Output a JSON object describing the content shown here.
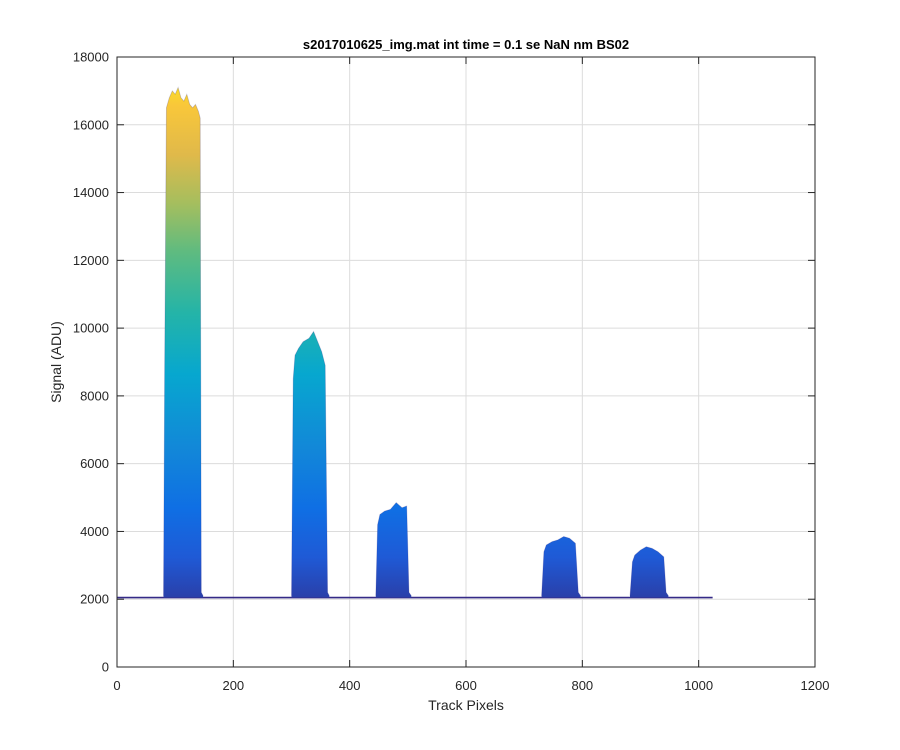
{
  "chart_data": {
    "type": "area",
    "title": "s2017010625_img.mat int time = 0.1 se  NaN nm BS02",
    "xlabel": "Track Pixels",
    "ylabel": "Signal (ADU)",
    "xlim": [
      0,
      1200
    ],
    "ylim": [
      0,
      18000
    ],
    "xticks": [
      "0",
      "200",
      "400",
      "600",
      "800",
      "1000",
      "1200"
    ],
    "yticks": [
      "0",
      "2000",
      "4000",
      "6000",
      "8000",
      "10000",
      "12000",
      "14000",
      "16000",
      "18000"
    ],
    "grid": true,
    "colormap": "parula",
    "baseline": {
      "x": [
        0,
        1024
      ],
      "y": 2050
    },
    "series": [
      {
        "x": [
          80,
          82,
          85,
          90,
          95,
          100,
          105,
          110,
          115,
          120,
          125,
          130,
          135,
          140,
          143,
          145,
          148
        ],
        "y": [
          2100,
          9000,
          16500,
          16800,
          17000,
          16900,
          17100,
          16800,
          16700,
          16900,
          16600,
          16500,
          16600,
          16400,
          16200,
          2200,
          2100
        ]
      },
      {
        "x": [
          300,
          303,
          306,
          312,
          320,
          330,
          338,
          345,
          352,
          358,
          362,
          365
        ],
        "y": [
          2100,
          8500,
          9200,
          9400,
          9600,
          9700,
          9900,
          9600,
          9300,
          8900,
          2200,
          2100
        ]
      },
      {
        "x": [
          445,
          448,
          452,
          460,
          470,
          480,
          490,
          498,
          502,
          506
        ],
        "y": [
          2100,
          4200,
          4500,
          4600,
          4650,
          4850,
          4700,
          4750,
          2200,
          2100
        ]
      },
      {
        "x": [
          730,
          734,
          738,
          748,
          758,
          768,
          778,
          788,
          793,
          797
        ],
        "y": [
          2100,
          3400,
          3600,
          3700,
          3750,
          3850,
          3800,
          3650,
          2200,
          2100
        ]
      },
      {
        "x": [
          882,
          886,
          890,
          900,
          910,
          920,
          930,
          940,
          944,
          948
        ],
        "y": [
          2100,
          3100,
          3300,
          3450,
          3550,
          3500,
          3400,
          3250,
          2200,
          2100
        ]
      }
    ]
  }
}
